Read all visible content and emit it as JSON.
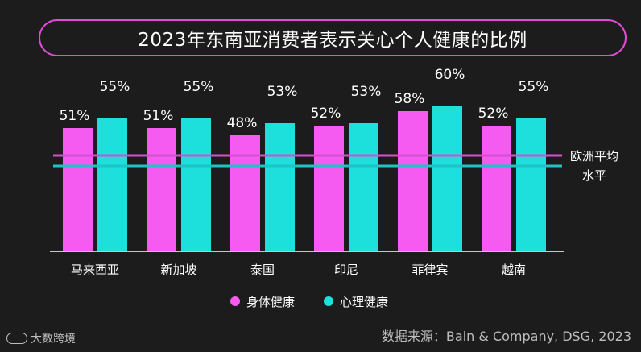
{
  "chart_data": {
    "type": "bar",
    "title": "2023年东南亚消费者表示关心个人健康的比例",
    "categories": [
      "马来西亚",
      "新加坡",
      "泰国",
      "印尼",
      "菲律宾",
      "越南"
    ],
    "series": [
      {
        "name": "身体健康",
        "color": "#f55bf0",
        "values": [
          51,
          51,
          48,
          52,
          58,
          52
        ]
      },
      {
        "name": "心理健康",
        "color": "#1de0dc",
        "values": [
          55,
          55,
          53,
          53,
          60,
          55
        ]
      }
    ],
    "value_suffix": "%",
    "reference_line_label": "欧洲平均水平",
    "reference_lines": [
      {
        "series": "身体健康",
        "color": "#d24fd0"
      },
      {
        "series": "心理健康",
        "color": "#1cc4c4"
      }
    ],
    "legend_position": "bottom",
    "grid": false
  },
  "footer": {
    "source": "数据来源：Bain & Company, DSG, 2023",
    "logo_text": "大数跨境"
  }
}
